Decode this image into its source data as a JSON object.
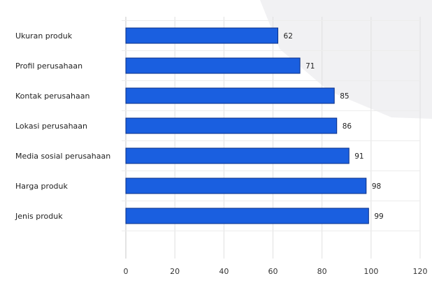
{
  "chart_data": {
    "type": "bar",
    "orientation": "horizontal",
    "categories": [
      "Ukuran produk",
      "Profil perusahaan",
      "Kontak perusahaan",
      "Lokasi perusahaan",
      "Media sosial perusahaan",
      "Harga produk",
      "Jenis produk"
    ],
    "values": [
      62,
      71,
      85,
      86,
      91,
      98,
      99
    ],
    "xlim": [
      0,
      120
    ],
    "xticks": [
      0,
      20,
      40,
      60,
      80,
      100,
      120
    ],
    "data_labels": true,
    "grid": true,
    "legend": "none",
    "bar_color": "#1a5fe0",
    "bar_edge_color": "#0a2f86"
  }
}
